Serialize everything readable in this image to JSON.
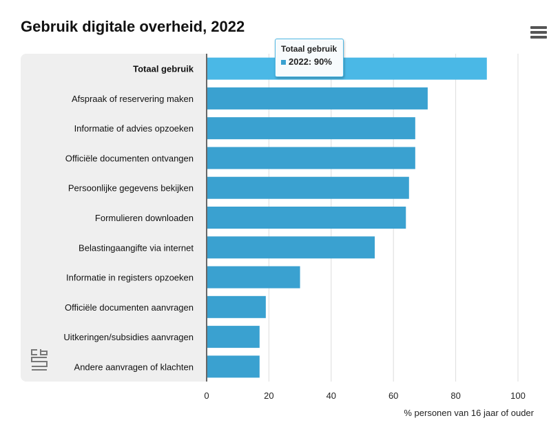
{
  "chart_data": {
    "type": "bar",
    "orientation": "horizontal",
    "title": "Gebruik digitale overheid, 2022",
    "xlabel": "% personen van 16 jaar of ouder",
    "xlim": [
      0,
      100
    ],
    "xticks": [
      0,
      20,
      40,
      60,
      80,
      100
    ],
    "grid": true,
    "categories": [
      "Totaal gebruik",
      "Afspraak of reservering maken",
      "Informatie of advies opzoeken",
      "Officiële documenten ontvangen",
      "Persoonlijke gegevens bekijken",
      "Formulieren downloaden",
      "Belastingaangifte via internet",
      "Informatie in registers opzoeken",
      "Officiële documenten aanvragen",
      "Uitkeringen/subsidies aanvragen",
      "Andere aanvragen of klachten"
    ],
    "series": [
      {
        "values": [
          90,
          71,
          67,
          67,
          65,
          64,
          54,
          30,
          19,
          17,
          17
        ]
      }
    ],
    "highlighted_category": "Totaal gebruik",
    "colors": {
      "bar": "#3aa1d0",
      "highlight": "#4ab8e6",
      "panel": "#efefef",
      "grid": "#dcdcdc"
    }
  },
  "tooltip": {
    "title": "Totaal gebruik",
    "value": "2022: 90%"
  },
  "icons": {
    "menu": "hamburger-menu-icon",
    "logo": "cbs-logo"
  }
}
